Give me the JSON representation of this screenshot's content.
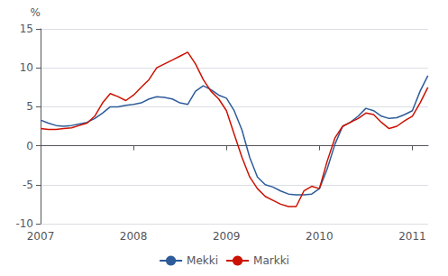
{
  "chart_data": {
    "type": "line",
    "ylabel": "%",
    "x": [
      2007.0,
      2007.083,
      2007.167,
      2007.25,
      2007.333,
      2007.417,
      2007.5,
      2007.583,
      2007.667,
      2007.75,
      2007.833,
      2007.917,
      2008.0,
      2008.083,
      2008.167,
      2008.25,
      2008.333,
      2008.417,
      2008.5,
      2008.583,
      2008.667,
      2008.75,
      2008.833,
      2008.917,
      2009.0,
      2009.083,
      2009.167,
      2009.25,
      2009.333,
      2009.417,
      2009.5,
      2009.583,
      2009.667,
      2009.75,
      2009.833,
      2009.917,
      2010.0,
      2010.083,
      2010.167,
      2010.25,
      2010.333,
      2010.417,
      2010.5,
      2010.583,
      2010.667,
      2010.75,
      2010.833,
      2010.917,
      2011.0,
      2011.083,
      2011.167
    ],
    "series": [
      {
        "name": "Mekki",
        "color": "#2e5b9a",
        "values": [
          3.3,
          2.9,
          2.6,
          2.5,
          2.6,
          2.8,
          3.0,
          3.5,
          4.2,
          5.0,
          5.0,
          5.2,
          5.3,
          5.5,
          6.0,
          6.3,
          6.2,
          6.0,
          5.5,
          5.3,
          7.0,
          7.7,
          7.2,
          6.5,
          6.1,
          4.5,
          2.0,
          -1.5,
          -4.0,
          -5.0,
          -5.3,
          -5.8,
          -6.2,
          -6.3,
          -6.3,
          -6.2,
          -5.5,
          -3.0,
          0.2,
          2.5,
          3.0,
          3.8,
          4.8,
          4.5,
          3.8,
          3.5,
          3.6,
          4.0,
          4.5,
          7.0,
          9.0
        ]
      },
      {
        "name": "Markki",
        "color": "#cc1100",
        "values": [
          2.2,
          2.1,
          2.1,
          2.2,
          2.3,
          2.6,
          2.9,
          3.8,
          5.5,
          6.7,
          6.3,
          5.8,
          6.5,
          7.5,
          8.5,
          10.0,
          10.5,
          11.0,
          11.5,
          12.0,
          10.5,
          8.5,
          7.0,
          6.0,
          4.5,
          1.5,
          -1.5,
          -4.0,
          -5.5,
          -6.5,
          -7.0,
          -7.5,
          -7.8,
          -7.8,
          -5.8,
          -5.2,
          -5.5,
          -2.0,
          1.0,
          2.5,
          3.0,
          3.5,
          4.2,
          4.0,
          3.0,
          2.2,
          2.5,
          3.2,
          3.8,
          5.5,
          7.5
        ]
      }
    ],
    "xlim": [
      2007.0,
      2011.17
    ],
    "xticks": [
      2007,
      2008,
      2009,
      2010,
      2011
    ],
    "ylim": [
      -10,
      15
    ],
    "yticks": [
      -10,
      -5,
      0,
      5,
      10,
      15
    ],
    "grid": true,
    "legend": "bottom"
  }
}
